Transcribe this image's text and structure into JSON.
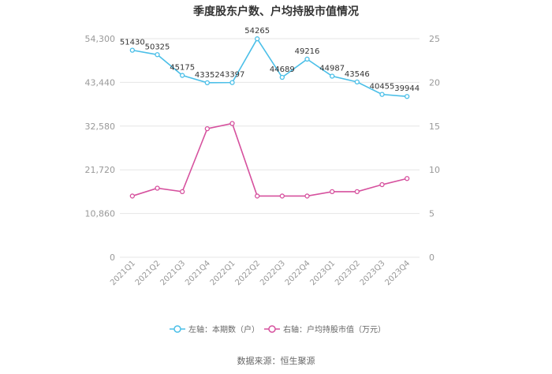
{
  "chart_data": {
    "type": "line",
    "title": "季度股东户数、户均持股市值情况",
    "categories": [
      "2021Q1",
      "2021Q2",
      "2021Q3",
      "2021Q4",
      "2022Q1",
      "2022Q2",
      "2022Q3",
      "2022Q4",
      "2023Q1",
      "2023Q2",
      "2023Q3",
      "2023Q4"
    ],
    "left_axis": {
      "ticks": [
        "0",
        "10,860",
        "21,720",
        "32,580",
        "43,440",
        "54,300"
      ],
      "ylim": [
        0,
        54300
      ]
    },
    "right_axis": {
      "ticks": [
        "0",
        "5",
        "10",
        "15",
        "20",
        "25"
      ],
      "ylim": [
        0,
        25
      ]
    },
    "grid": true,
    "legend_position": "bottom",
    "series": [
      {
        "name": "左轴：本期数（户）",
        "axis": "left",
        "color": "#4bbfe8",
        "values": [
          51430,
          50325,
          45175,
          43352,
          43397,
          54265,
          44689,
          49216,
          44987,
          43546,
          40455,
          39944
        ],
        "labels": [
          "51430",
          "50325",
          "45175",
          "43352",
          "43397",
          "54265",
          "44689",
          "49216",
          "44987",
          "43546",
          "40455",
          "39944"
        ]
      },
      {
        "name": "右轴：户均持股市值（万元）",
        "axis": "right",
        "color": "#d6519e",
        "values": [
          7.0,
          7.9,
          7.5,
          14.7,
          15.3,
          7.0,
          7.0,
          7.0,
          7.5,
          7.5,
          8.3,
          9.0
        ]
      }
    ]
  },
  "source": "数据来源：恒生聚源"
}
